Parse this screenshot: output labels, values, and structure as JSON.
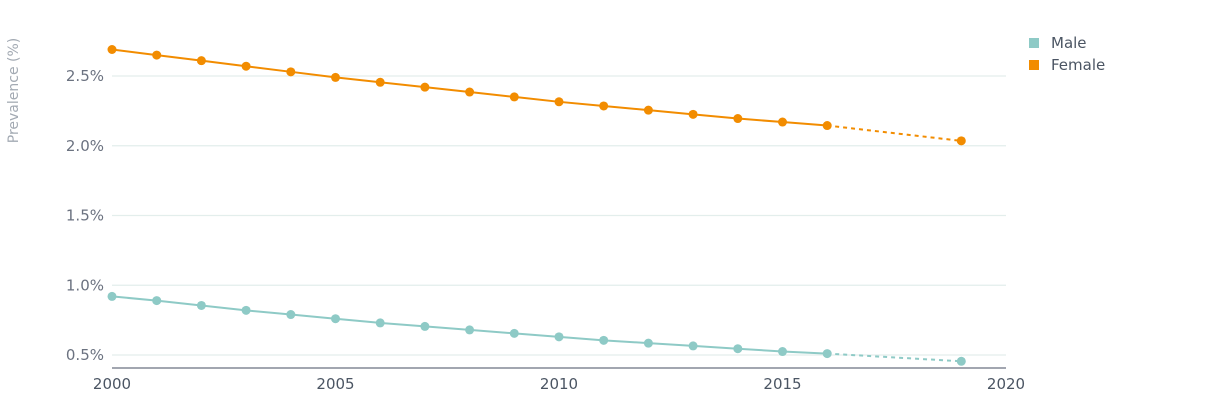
{
  "chart_data": {
    "type": "line",
    "xlabel": "",
    "ylabel": "Prevalence (%)",
    "xlim": [
      2000,
      2020
    ],
    "ylim": [
      0.4,
      2.9
    ],
    "x_ticks": [
      2000,
      2005,
      2010,
      2015,
      2020
    ],
    "x_tick_labels": [
      "2000",
      "2005",
      "2010",
      "2015",
      "2020"
    ],
    "y_ticks": [
      0.5,
      1.0,
      1.5,
      2.0,
      2.5
    ],
    "y_tick_labels": [
      "0.5%",
      "1.0%",
      "1.5%",
      "2.0%",
      "2.5%"
    ],
    "grid": true,
    "legend_position": "top-right",
    "series": [
      {
        "name": "Male",
        "color": "#8ecac6",
        "x": [
          2000,
          2001,
          2002,
          2003,
          2004,
          2005,
          2006,
          2007,
          2008,
          2009,
          2010,
          2011,
          2012,
          2013,
          2014,
          2015,
          2016,
          2019
        ],
        "values": [
          0.92,
          0.89,
          0.855,
          0.82,
          0.79,
          0.76,
          0.73,
          0.705,
          0.68,
          0.655,
          0.63,
          0.605,
          0.585,
          0.565,
          0.545,
          0.525,
          0.51,
          0.455
        ],
        "projected_from": 2016
      },
      {
        "name": "Female",
        "color": "#f28c00",
        "x": [
          2000,
          2001,
          2002,
          2003,
          2004,
          2005,
          2006,
          2007,
          2008,
          2009,
          2010,
          2011,
          2012,
          2013,
          2014,
          2015,
          2016,
          2019
        ],
        "values": [
          2.69,
          2.65,
          2.61,
          2.57,
          2.53,
          2.49,
          2.455,
          2.42,
          2.385,
          2.35,
          2.315,
          2.285,
          2.255,
          2.225,
          2.195,
          2.17,
          2.145,
          2.035
        ],
        "projected_from": 2016
      }
    ]
  }
}
